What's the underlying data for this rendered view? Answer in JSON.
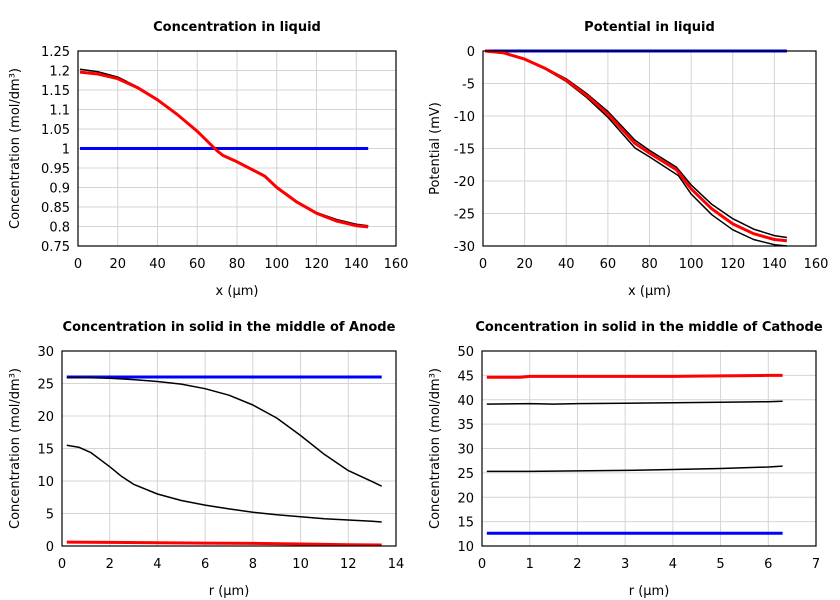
{
  "chart_data": [
    {
      "type": "line",
      "title": "Concentration in liquid",
      "xlabel": "x (µm)",
      "ylabel": "Concentration (mol/dm³)",
      "xlim": [
        0,
        160
      ],
      "ylim": [
        0.75,
        1.25
      ],
      "xticks": [
        0,
        20,
        40,
        60,
        80,
        100,
        120,
        140,
        160
      ],
      "yticks": [
        0.75,
        0.8,
        0.85,
        0.9,
        0.95,
        1,
        1.05,
        1.1,
        1.15,
        1.2,
        1.25
      ],
      "grid": true,
      "series": [
        {
          "color": "#0000ff",
          "x": [
            1,
            146
          ],
          "y": [
            1.0,
            1.0
          ]
        },
        {
          "color": "#000000",
          "x": [
            1,
            10,
            20,
            30,
            40,
            50,
            60,
            70,
            73,
            80,
            94,
            100,
            110,
            120,
            130,
            140,
            146
          ],
          "y": [
            1.203,
            1.197,
            1.183,
            1.158,
            1.126,
            1.088,
            1.045,
            0.995,
            0.983,
            0.967,
            0.931,
            0.902,
            0.865,
            0.836,
            0.818,
            0.806,
            0.802
          ]
        },
        {
          "color": "#ff0000",
          "x": [
            1,
            10,
            20,
            30,
            40,
            50,
            60,
            70,
            73,
            80,
            94,
            100,
            110,
            120,
            130,
            140,
            146
          ],
          "y": [
            1.196,
            1.191,
            1.179,
            1.156,
            1.125,
            1.087,
            1.044,
            0.994,
            0.982,
            0.966,
            0.929,
            0.9,
            0.863,
            0.834,
            0.814,
            0.802,
            0.799
          ]
        }
      ]
    },
    {
      "type": "line",
      "title": "Potential in liquid",
      "xlabel": "x (µm)",
      "ylabel": "Potential (mV)",
      "xlim": [
        0,
        160
      ],
      "ylim": [
        -30,
        0
      ],
      "xticks": [
        0,
        20,
        40,
        60,
        80,
        100,
        120,
        140,
        160
      ],
      "yticks": [
        -30,
        -25,
        -20,
        -15,
        -10,
        -5,
        0
      ],
      "grid": true,
      "series": [
        {
          "color": "#0000ff",
          "x": [
            1,
            146
          ],
          "y": [
            0,
            0
          ]
        },
        {
          "color": "#000000",
          "x": [
            1,
            10,
            20,
            30,
            40,
            50,
            60,
            73,
            80,
            93,
            100,
            110,
            120,
            130,
            140,
            146
          ],
          "y": [
            0,
            -0.3,
            -1.2,
            -2.6,
            -4.3,
            -6.6,
            -9.3,
            -13.7,
            -15.3,
            -17.9,
            -20.6,
            -23.6,
            -25.8,
            -27.4,
            -28.4,
            -28.7
          ]
        },
        {
          "color": "#000000",
          "x": [
            1,
            10,
            20,
            30,
            40,
            50,
            60,
            73,
            80,
            94,
            100,
            110,
            120,
            130,
            140,
            146
          ],
          "y": [
            0,
            -0.35,
            -1.3,
            -2.8,
            -4.7,
            -7.2,
            -10.2,
            -14.9,
            -16.3,
            -19.2,
            -22.0,
            -25.2,
            -27.5,
            -29.0,
            -29.8,
            -30.0
          ]
        },
        {
          "color": "#ff0000",
          "x": [
            1,
            10,
            20,
            30,
            40,
            50,
            60,
            73,
            80,
            93,
            100,
            110,
            120,
            130,
            140,
            146
          ],
          "y": [
            0,
            -0.3,
            -1.25,
            -2.7,
            -4.5,
            -6.9,
            -9.7,
            -14.2,
            -15.7,
            -18.3,
            -21.2,
            -24.3,
            -26.6,
            -28.1,
            -29.0,
            -29.2
          ]
        }
      ]
    },
    {
      "type": "line",
      "title": "Concentration in solid in the middle of Anode",
      "xlabel": "r (µm)",
      "ylabel": "Concentration (mol/dm³)",
      "xlim": [
        0,
        14
      ],
      "ylim": [
        0,
        30
      ],
      "xticks": [
        0,
        2,
        4,
        6,
        8,
        10,
        12,
        14
      ],
      "yticks": [
        0,
        5,
        10,
        15,
        20,
        25,
        30
      ],
      "grid": true,
      "series": [
        {
          "color": "#0000ff",
          "x": [
            0.2,
            13.4
          ],
          "y": [
            26,
            26
          ]
        },
        {
          "color": "#000000",
          "x": [
            0.2,
            1,
            2,
            3,
            4,
            5,
            6,
            7,
            8,
            9,
            10,
            11,
            12,
            13,
            13.4
          ],
          "y": [
            25.9,
            25.9,
            25.8,
            25.6,
            25.3,
            24.9,
            24.2,
            23.2,
            21.7,
            19.7,
            17.0,
            14.1,
            11.6,
            9.9,
            9.2
          ]
        },
        {
          "color": "#000000",
          "x": [
            0.2,
            0.7,
            1.2,
            2,
            2.5,
            3,
            4,
            5,
            6,
            7,
            8,
            9,
            10,
            11,
            12,
            13,
            13.4
          ],
          "y": [
            15.5,
            15.2,
            14.4,
            12.2,
            10.7,
            9.5,
            8.0,
            7.0,
            6.3,
            5.7,
            5.2,
            4.8,
            4.5,
            4.2,
            4.0,
            3.8,
            3.7
          ]
        },
        {
          "color": "#ff0000",
          "x": [
            0.2,
            2,
            4,
            6,
            8,
            10,
            12,
            13.4
          ],
          "y": [
            0.6,
            0.55,
            0.5,
            0.45,
            0.4,
            0.3,
            0.2,
            0.15
          ]
        }
      ]
    },
    {
      "type": "line",
      "title": "Concentration in solid in the middle of Cathode",
      "xlabel": "r (µm)",
      "ylabel": "Concentration (mol/dm³)",
      "xlim": [
        0,
        7
      ],
      "ylim": [
        10,
        50
      ],
      "xticks": [
        0,
        1,
        2,
        3,
        4,
        5,
        6,
        7
      ],
      "yticks": [
        10,
        15,
        20,
        25,
        30,
        35,
        40,
        45,
        50
      ],
      "grid": true,
      "series": [
        {
          "color": "#0000ff",
          "x": [
            0.1,
            6.3
          ],
          "y": [
            12.6,
            12.6
          ]
        },
        {
          "color": "#000000",
          "x": [
            0.1,
            1,
            2,
            3,
            4,
            5,
            6,
            6.3
          ],
          "y": [
            25.3,
            25.3,
            25.4,
            25.5,
            25.7,
            25.9,
            26.2,
            26.4
          ]
        },
        {
          "color": "#000000",
          "x": [
            0.1,
            1,
            1.5,
            2,
            3,
            4,
            5,
            6,
            6.3
          ],
          "y": [
            39.1,
            39.2,
            39.1,
            39.2,
            39.3,
            39.4,
            39.5,
            39.6,
            39.7
          ]
        },
        {
          "color": "#ff0000",
          "x": [
            0.1,
            0.8,
            1,
            2,
            3,
            4,
            5,
            6,
            6.3
          ],
          "y": [
            44.6,
            44.6,
            44.8,
            44.8,
            44.8,
            44.8,
            44.9,
            45.0,
            45.0
          ]
        }
      ]
    }
  ]
}
